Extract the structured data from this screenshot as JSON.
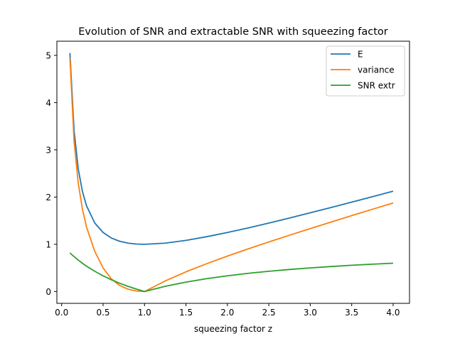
{
  "chart_data": {
    "type": "line",
    "title": "Evolution of SNR and extractable SNR with squeezing factor",
    "xlabel": "squeezing factor z",
    "ylabel": "",
    "xlim": [
      -0.0575,
      4.1975
    ],
    "ylim": [
      -0.25,
      5.3
    ],
    "xticks": [
      0.0,
      0.5,
      1.0,
      1.5,
      2.0,
      2.5,
      3.0,
      3.5,
      4.0
    ],
    "xtick_labels": [
      "0.0",
      "0.5",
      "1.0",
      "1.5",
      "2.0",
      "2.5",
      "3.0",
      "3.5",
      "4.0"
    ],
    "yticks": [
      0,
      1,
      2,
      3,
      4,
      5
    ],
    "ytick_labels": [
      "0",
      "1",
      "2",
      "3",
      "4",
      "5"
    ],
    "grid": false,
    "legend_position": "upper right",
    "x": [
      0.1,
      0.15,
      0.2,
      0.25,
      0.3,
      0.4,
      0.5,
      0.6,
      0.7,
      0.8,
      0.9,
      1.0,
      1.25,
      1.5,
      1.75,
      2.0,
      2.25,
      2.5,
      2.75,
      3.0,
      3.25,
      3.5,
      3.75,
      4.0
    ],
    "series": [
      {
        "name": "E",
        "color": "#1f77b4",
        "values": [
          5.05,
          3.408,
          2.6,
          2.125,
          1.817,
          1.45,
          1.25,
          1.133,
          1.064,
          1.025,
          1.006,
          1.0,
          1.025,
          1.083,
          1.161,
          1.25,
          1.347,
          1.45,
          1.557,
          1.667,
          1.779,
          1.893,
          2.008,
          2.125
        ]
      },
      {
        "name": "variance",
        "color": "#ff7f0e",
        "values": [
          4.95,
          3.183,
          2.3,
          1.75,
          1.367,
          0.85,
          0.5,
          0.267,
          0.129,
          0.05,
          0.011,
          0.0,
          0.225,
          0.417,
          0.589,
          0.75,
          0.903,
          1.05,
          1.193,
          1.333,
          1.471,
          1.607,
          1.742,
          1.875
        ]
      },
      {
        "name": "SNR extr",
        "color": "#2ca02c",
        "values": [
          0.818,
          0.739,
          0.667,
          0.6,
          0.538,
          0.429,
          0.333,
          0.25,
          0.176,
          0.111,
          0.053,
          0.0,
          0.111,
          0.2,
          0.273,
          0.333,
          0.385,
          0.429,
          0.467,
          0.5,
          0.529,
          0.556,
          0.579,
          0.6
        ]
      }
    ]
  }
}
